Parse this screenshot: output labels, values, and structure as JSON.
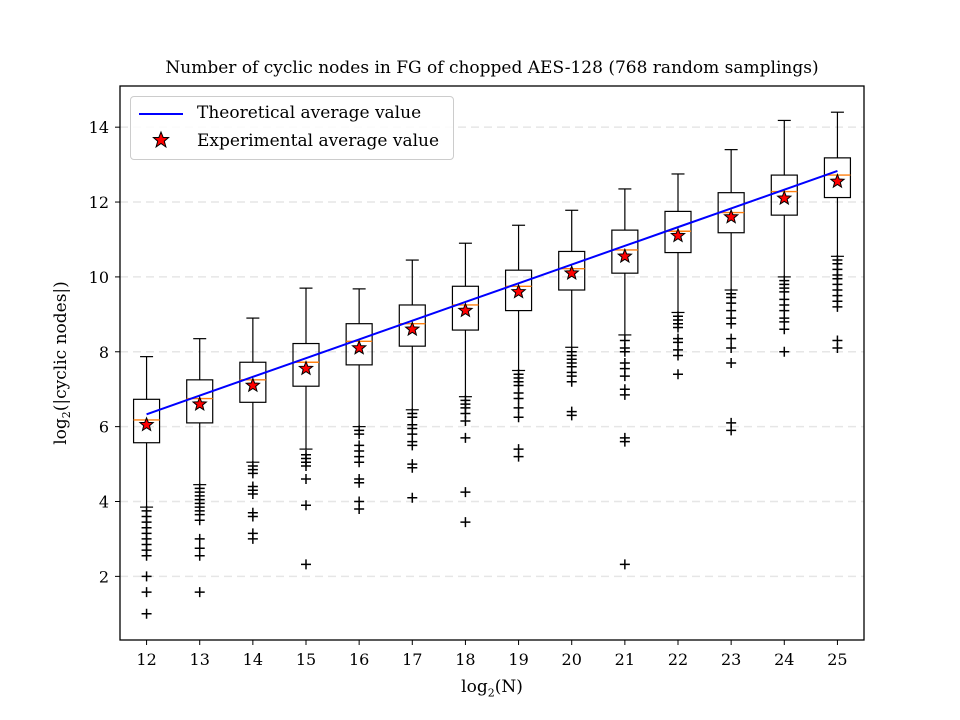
{
  "chart_data": {
    "type": "box",
    "title": "Number of cyclic nodes in FG of chopped AES-128 (768 random samplings)",
    "xlabel_prefix": "log",
    "xlabel_sub": "2",
    "xlabel_suffix": "(N)",
    "ylabel_prefix": "log",
    "ylabel_sub": "2",
    "ylabel_suffix": "(|cyclic nodes|)",
    "xlim": [
      11.5,
      25.5
    ],
    "ylim": [
      0.3,
      15.1
    ],
    "xticks": [
      12,
      13,
      14,
      15,
      16,
      17,
      18,
      19,
      20,
      21,
      22,
      23,
      24,
      25
    ],
    "yticks": [
      2,
      4,
      6,
      8,
      10,
      12,
      14
    ],
    "grid": "y-dashed",
    "legend_position": "upper-left",
    "colors": {
      "theory": "#0000ff",
      "median": "#ff7f0e",
      "star_fill": "#ff0000",
      "box": "#000000",
      "grid": "#e6e6e6"
    },
    "series": [
      {
        "name": "Theoretical average value",
        "kind": "line",
        "x": [
          12,
          13,
          14,
          15,
          16,
          17,
          18,
          19,
          20,
          21,
          22,
          23,
          24,
          25
        ],
        "values": [
          6.33,
          6.83,
          7.33,
          7.83,
          8.33,
          8.83,
          9.33,
          9.83,
          10.33,
          10.83,
          11.33,
          11.83,
          12.33,
          12.83
        ]
      },
      {
        "name": "Experimental average value",
        "kind": "star",
        "x": [
          12,
          13,
          14,
          15,
          16,
          17,
          18,
          19,
          20,
          21,
          22,
          23,
          24,
          25
        ],
        "values": [
          6.05,
          6.6,
          7.1,
          7.55,
          8.1,
          8.6,
          9.1,
          9.6,
          10.1,
          10.55,
          11.1,
          11.6,
          12.1,
          12.55
        ]
      }
    ],
    "boxes": [
      {
        "x": 12,
        "q1": 5.57,
        "median": 6.18,
        "q3": 6.73,
        "whislo": 3.85,
        "whishi": 7.87,
        "fliers": [
          3.75,
          3.6,
          3.45,
          3.3,
          3.15,
          3.0,
          2.85,
          2.7,
          2.55,
          2.0,
          1.58,
          1.0
        ]
      },
      {
        "x": 13,
        "q1": 6.1,
        "median": 6.75,
        "q3": 7.25,
        "whislo": 4.45,
        "whishi": 8.35,
        "fliers": [
          4.35,
          4.25,
          4.15,
          4.05,
          3.95,
          3.85,
          3.75,
          3.65,
          3.5,
          3.0,
          2.75,
          2.55,
          1.58
        ]
      },
      {
        "x": 14,
        "q1": 6.65,
        "median": 7.25,
        "q3": 7.72,
        "whislo": 5.05,
        "whishi": 8.9,
        "fliers": [
          4.95,
          4.85,
          4.75,
          4.4,
          4.3,
          4.2,
          3.7,
          3.6,
          3.15,
          3.0
        ]
      },
      {
        "x": 15,
        "q1": 7.08,
        "median": 7.72,
        "q3": 8.22,
        "whislo": 5.4,
        "whishi": 9.7,
        "fliers": [
          5.25,
          5.15,
          5.05,
          4.95,
          4.6,
          3.9,
          2.32
        ]
      },
      {
        "x": 16,
        "q1": 7.65,
        "median": 8.28,
        "q3": 8.75,
        "whislo": 6.0,
        "whishi": 9.68,
        "fliers": [
          5.9,
          5.8,
          5.5,
          5.35,
          5.2,
          5.05,
          4.6,
          4.5,
          4.0,
          3.8
        ]
      },
      {
        "x": 17,
        "q1": 8.15,
        "median": 8.75,
        "q3": 9.25,
        "whislo": 6.45,
        "whishi": 10.45,
        "fliers": [
          6.35,
          6.25,
          6.05,
          5.95,
          5.8,
          5.6,
          5.5,
          5.0,
          4.9,
          4.1
        ]
      },
      {
        "x": 18,
        "q1": 8.58,
        "median": 9.25,
        "q3": 9.75,
        "whislo": 6.8,
        "whishi": 10.9,
        "fliers": [
          6.7,
          6.6,
          6.5,
          6.35,
          6.15,
          5.7,
          4.25,
          3.45
        ]
      },
      {
        "x": 19,
        "q1": 9.1,
        "median": 9.75,
        "q3": 10.18,
        "whislo": 7.5,
        "whishi": 11.38,
        "fliers": [
          7.4,
          7.3,
          7.2,
          7.1,
          6.9,
          6.75,
          6.5,
          6.25,
          5.4,
          5.2
        ]
      },
      {
        "x": 20,
        "q1": 9.65,
        "median": 10.22,
        "q3": 10.68,
        "whislo": 8.12,
        "whishi": 11.78,
        "fliers": [
          8.0,
          7.9,
          7.8,
          7.7,
          7.6,
          7.45,
          7.35,
          7.2,
          6.4,
          6.3
        ]
      },
      {
        "x": 21,
        "q1": 10.1,
        "median": 10.72,
        "q3": 11.25,
        "whislo": 8.45,
        "whishi": 12.35,
        "fliers": [
          8.3,
          8.1,
          8.0,
          7.7,
          7.55,
          7.35,
          7.0,
          6.85,
          5.7,
          5.6,
          2.32
        ]
      },
      {
        "x": 22,
        "q1": 10.65,
        "median": 11.22,
        "q3": 11.75,
        "whislo": 9.05,
        "whishi": 12.75,
        "fliers": [
          8.95,
          8.85,
          8.75,
          8.65,
          8.35,
          8.25,
          8.05,
          7.9,
          7.4
        ]
      },
      {
        "x": 23,
        "q1": 11.18,
        "median": 11.72,
        "q3": 12.25,
        "whislo": 9.65,
        "whishi": 13.4,
        "fliers": [
          9.55,
          9.45,
          9.3,
          9.1,
          8.9,
          8.75,
          8.35,
          8.1,
          7.7,
          6.1,
          5.9
        ]
      },
      {
        "x": 24,
        "q1": 11.65,
        "median": 12.28,
        "q3": 12.72,
        "whislo": 10.0,
        "whishi": 14.18,
        "fliers": [
          9.9,
          9.8,
          9.7,
          9.6,
          9.4,
          9.25,
          9.1,
          8.9,
          8.8,
          8.6,
          8.0
        ]
      },
      {
        "x": 25,
        "q1": 12.12,
        "median": 12.72,
        "q3": 13.18,
        "whislo": 10.55,
        "whishi": 14.4,
        "fliers": [
          10.45,
          10.35,
          10.2,
          10.05,
          9.95,
          9.8,
          9.65,
          9.5,
          9.35,
          9.2,
          8.3,
          8.1
        ]
      }
    ]
  }
}
